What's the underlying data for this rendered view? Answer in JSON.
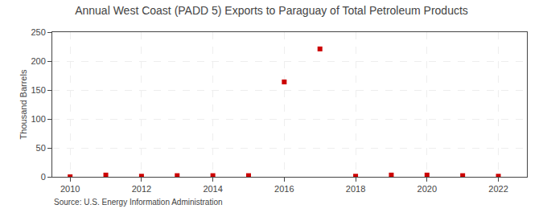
{
  "chart_data": {
    "type": "scatter",
    "title": "Annual West Coast (PADD 5) Exports to Paraguay of Total Petroleum Products",
    "ylabel": "Thousand Barrels",
    "annotations": [
      "Source: U.S. Energy Information Administration"
    ],
    "x": [
      2010,
      2011,
      2012,
      2013,
      2014,
      2015,
      2016,
      2017,
      2018,
      2019,
      2020,
      2021,
      2022
    ],
    "values": [
      0,
      3,
      1,
      2,
      2,
      2,
      164,
      221,
      1,
      3,
      3,
      2,
      1
    ],
    "color": "#cc0000",
    "marker": "square",
    "xlim": [
      2009.5,
      2022.8
    ],
    "xticks": [
      2010,
      2012,
      2014,
      2016,
      2018,
      2020,
      2022
    ],
    "ylim": [
      0,
      250
    ],
    "yticks": [
      0,
      50,
      100,
      150,
      200,
      250
    ],
    "grid": true
  }
}
